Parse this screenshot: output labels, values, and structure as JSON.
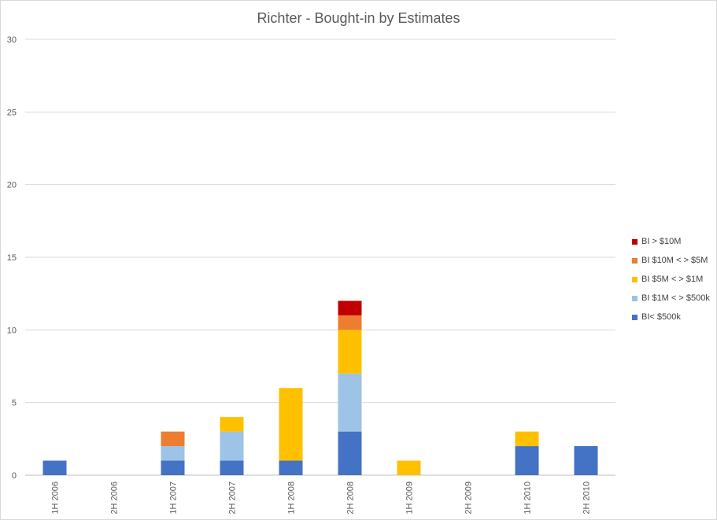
{
  "chart_data": {
    "type": "bar",
    "stacked": true,
    "title": "Richter - Bought-in by Estimates",
    "xlabel": "",
    "ylabel": "",
    "ylim": [
      0,
      30
    ],
    "yticks": [
      0,
      5,
      10,
      15,
      20,
      25,
      30
    ],
    "grid": true,
    "legend_position": "right",
    "categories": [
      "1H 2006",
      "2H 2006",
      "1H 2007",
      "2H 2007",
      "1H 2008",
      "2H 2008",
      "1H 2009",
      "2H 2009",
      "1H 2010",
      "2H 2010"
    ],
    "series": [
      {
        "name": "BI< $500k",
        "color": "#4472c4",
        "values": [
          1,
          0,
          1,
          1,
          1,
          3,
          0,
          0,
          2,
          2
        ]
      },
      {
        "name": "BI $1M < > $500k",
        "color": "#9dc3e6",
        "values": [
          0,
          0,
          1,
          2,
          0,
          4,
          0,
          0,
          0,
          0
        ]
      },
      {
        "name": "BI $5M < > $1M",
        "color": "#ffc000",
        "values": [
          0,
          0,
          0,
          1,
          5,
          3,
          1,
          0,
          1,
          0
        ]
      },
      {
        "name": "BI $10M < > $5M",
        "color": "#ed7d31",
        "values": [
          0,
          0,
          1,
          0,
          0,
          1,
          0,
          0,
          0,
          0
        ]
      },
      {
        "name": "BI > $10M",
        "color": "#c00000",
        "values": [
          0,
          0,
          0,
          0,
          0,
          1,
          0,
          0,
          0,
          0
        ]
      }
    ]
  }
}
